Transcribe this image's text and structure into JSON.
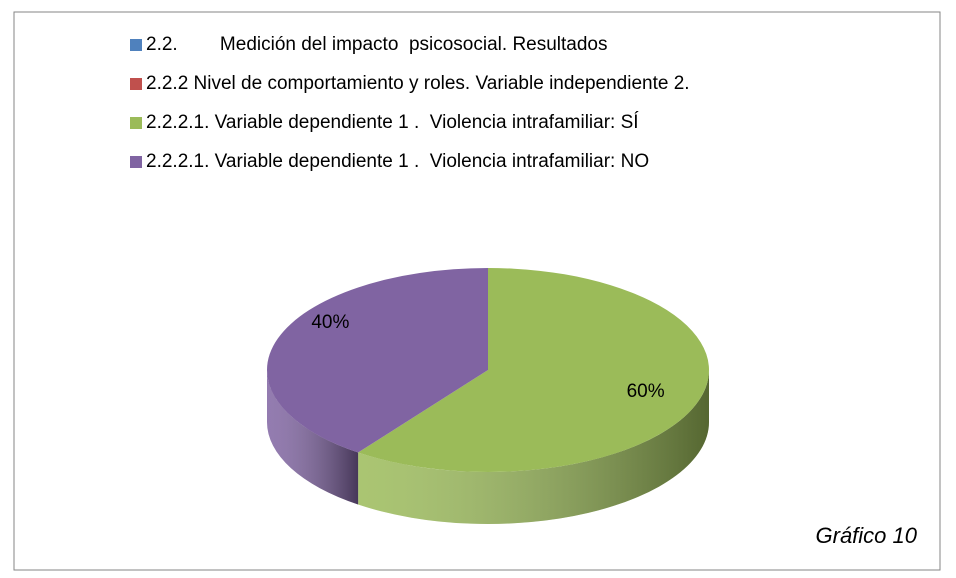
{
  "chart_data": {
    "type": "pie",
    "categories": [
      "2.2.        Medición del impacto  psicosocial. Resultados",
      "2.2.2 Nivel de comportamiento y roles. Variable independiente 2.",
      "2.2.2.1. Variable dependiente 1 .  Violencia intrafamiliar: SÍ",
      "2.2.2.1. Variable dependiente 1 .  Violencia intrafamiliar: NO"
    ],
    "values": [
      0,
      0,
      60,
      40
    ],
    "value_labels": [
      null,
      null,
      "60%",
      "40%"
    ],
    "colors": [
      "#4f81bd",
      "#c0504d",
      "#9bbb59",
      "#8064a2"
    ],
    "annotation": "Gráfico 10"
  }
}
